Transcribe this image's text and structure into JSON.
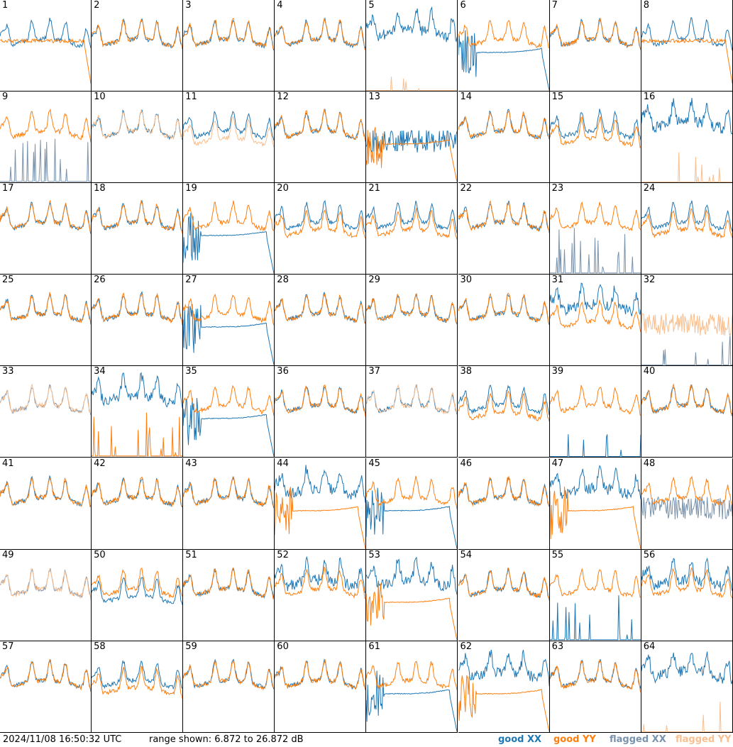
{
  "footer": {
    "timestamp": "2024/11/08 16:50:32 UTC",
    "range_text": "range shown: 6.872 to 26.872 dB",
    "legend": [
      {
        "label": "good XX",
        "color": "#1f77b4"
      },
      {
        "label": "good YY",
        "color": "#ff7f0e"
      },
      {
        "label": "flagged XX",
        "color": "#7a93ad"
      },
      {
        "label": "flagged YY",
        "color": "#f9bf8f"
      }
    ]
  },
  "colors": {
    "good_xx": "#1f77b4",
    "good_yy": "#ff7f0e",
    "flagged_xx": "#7a93ad",
    "flagged_yy": "#f9bf8f"
  },
  "range": {
    "min_db": 6.872,
    "max_db": 26.872
  },
  "chart_data": {
    "type": "line",
    "title": "",
    "grid_rows": 8,
    "grid_cols": 8,
    "panels": [
      {
        "n": "1",
        "xx": "normal",
        "yy": "droop_end",
        "flag": "none"
      },
      {
        "n": "2",
        "xx": "normal",
        "yy": "normal",
        "flag": "none"
      },
      {
        "n": "3",
        "xx": "normal",
        "yy": "normal",
        "flag": "none"
      },
      {
        "n": "4",
        "xx": "normal",
        "yy": "normal",
        "flag": "none"
      },
      {
        "n": "5",
        "xx": "high_noisy",
        "yy": "flat_spikes",
        "flag": "yy"
      },
      {
        "n": "6",
        "xx": "decay_drop",
        "yy": "normal",
        "flag": "none"
      },
      {
        "n": "7",
        "xx": "normal",
        "yy": "normal",
        "flag": "none"
      },
      {
        "n": "8",
        "xx": "normal",
        "yy": "droop_end",
        "flag": "none"
      },
      {
        "n": "9",
        "xx": "spikes",
        "yy": "normal",
        "flag": "xx"
      },
      {
        "n": "10",
        "xx": "normal",
        "yy": "normal",
        "flag": "yy"
      },
      {
        "n": "11",
        "xx": "normal",
        "yy": "low",
        "flag": "yy"
      },
      {
        "n": "12",
        "xx": "normal",
        "yy": "normal",
        "flag": "none"
      },
      {
        "n": "13",
        "xx": "noisy_mid",
        "yy": "decay_drop",
        "flag": "none"
      },
      {
        "n": "14",
        "xx": "normal",
        "yy": "normal",
        "flag": "none"
      },
      {
        "n": "15",
        "xx": "normal",
        "yy": "low",
        "flag": "none"
      },
      {
        "n": "16",
        "xx": "high_noisy",
        "yy": "flat_spikes",
        "flag": "yy"
      },
      {
        "n": "17",
        "xx": "normal",
        "yy": "normal",
        "flag": "none"
      },
      {
        "n": "18",
        "xx": "normal",
        "yy": "normal",
        "flag": "none"
      },
      {
        "n": "19",
        "xx": "decay_drop",
        "yy": "normal",
        "flag": "none"
      },
      {
        "n": "20",
        "xx": "normal",
        "yy": "low",
        "flag": "none"
      },
      {
        "n": "21",
        "xx": "normal",
        "yy": "low",
        "flag": "none"
      },
      {
        "n": "22",
        "xx": "normal",
        "yy": "normal",
        "flag": "none"
      },
      {
        "n": "23",
        "xx": "spikes",
        "yy": "normal",
        "flag": "xx"
      },
      {
        "n": "24",
        "xx": "normal",
        "yy": "low",
        "flag": "none"
      },
      {
        "n": "25",
        "xx": "normal",
        "yy": "normal",
        "flag": "none"
      },
      {
        "n": "26",
        "xx": "normal",
        "yy": "normal",
        "flag": "none"
      },
      {
        "n": "27",
        "xx": "decay_drop",
        "yy": "normal",
        "flag": "none"
      },
      {
        "n": "28",
        "xx": "normal",
        "yy": "normal",
        "flag": "none"
      },
      {
        "n": "29",
        "xx": "normal",
        "yy": "normal",
        "flag": "none"
      },
      {
        "n": "30",
        "xx": "normal",
        "yy": "normal",
        "flag": "none"
      },
      {
        "n": "31",
        "xx": "high_noisy",
        "yy": "low",
        "flag": "none"
      },
      {
        "n": "32",
        "xx": "flat_spikes",
        "yy": "noisy_mid",
        "flag": "both"
      },
      {
        "n": "33",
        "xx": "normal",
        "yy": "normal",
        "flag": "both"
      },
      {
        "n": "34",
        "xx": "high_noisy",
        "yy": "spikes",
        "flag": "none"
      },
      {
        "n": "35",
        "xx": "decay_drop",
        "yy": "normal",
        "flag": "none"
      },
      {
        "n": "36",
        "xx": "normal",
        "yy": "normal",
        "flag": "none"
      },
      {
        "n": "37",
        "xx": "normal",
        "yy": "normal",
        "flag": "yy"
      },
      {
        "n": "38",
        "xx": "normal",
        "yy": "low",
        "flag": "none"
      },
      {
        "n": "39",
        "xx": "flat_spikes",
        "yy": "normal",
        "flag": "none"
      },
      {
        "n": "40",
        "xx": "normal",
        "yy": "normal",
        "flag": "none"
      },
      {
        "n": "41",
        "xx": "normal",
        "yy": "normal",
        "flag": "none"
      },
      {
        "n": "42",
        "xx": "normal",
        "yy": "normal",
        "flag": "none"
      },
      {
        "n": "43",
        "xx": "normal",
        "yy": "normal",
        "flag": "none"
      },
      {
        "n": "44",
        "xx": "high_noisy",
        "yy": "decay_drop",
        "flag": "none"
      },
      {
        "n": "45",
        "xx": "decay_drop",
        "yy": "normal",
        "flag": "none"
      },
      {
        "n": "46",
        "xx": "normal",
        "yy": "normal",
        "flag": "none"
      },
      {
        "n": "47",
        "xx": "high_noisy",
        "yy": "decay_drop",
        "flag": "none"
      },
      {
        "n": "48",
        "xx": "noisy_mid",
        "yy": "normal",
        "flag": "xx"
      },
      {
        "n": "49",
        "xx": "normal",
        "yy": "normal",
        "flag": "both"
      },
      {
        "n": "50",
        "xx": "low",
        "yy": "normal",
        "flag": "none"
      },
      {
        "n": "51",
        "xx": "normal",
        "yy": "normal",
        "flag": "none"
      },
      {
        "n": "52",
        "xx": "high_noisy",
        "yy": "normal",
        "flag": "none"
      },
      {
        "n": "53",
        "xx": "high_noisy",
        "yy": "decay_drop",
        "flag": "none"
      },
      {
        "n": "54",
        "xx": "normal",
        "yy": "normal",
        "flag": "none"
      },
      {
        "n": "55",
        "xx": "spikes",
        "yy": "normal",
        "flag": "none"
      },
      {
        "n": "56",
        "xx": "high_noisy",
        "yy": "normal",
        "flag": "none"
      },
      {
        "n": "57",
        "xx": "normal",
        "yy": "normal",
        "flag": "none"
      },
      {
        "n": "58",
        "xx": "normal",
        "yy": "low",
        "flag": "none"
      },
      {
        "n": "59",
        "xx": "normal",
        "yy": "normal",
        "flag": "none"
      },
      {
        "n": "60",
        "xx": "normal",
        "yy": "normal",
        "flag": "none"
      },
      {
        "n": "61",
        "xx": "decay_drop",
        "yy": "normal",
        "flag": "none"
      },
      {
        "n": "62",
        "xx": "high_noisy",
        "yy": "decay_drop",
        "flag": "none"
      },
      {
        "n": "63",
        "xx": "normal",
        "yy": "normal",
        "flag": "none"
      },
      {
        "n": "64",
        "xx": "high_noisy",
        "yy": "flat_spikes",
        "flag": "yy"
      }
    ]
  }
}
